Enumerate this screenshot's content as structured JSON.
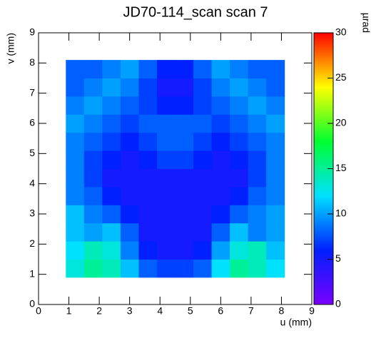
{
  "chart_data": {
    "type": "heatmap",
    "title": "JD70-114_scan scan 7",
    "x_label": "u (mm)",
    "y_label": "v (mm)",
    "z_label": "µrad",
    "xlim": [
      0,
      9
    ],
    "ylim": [
      0,
      9
    ],
    "xticks": [
      0,
      1,
      2,
      3,
      4,
      5,
      6,
      7,
      8,
      9
    ],
    "yticks": [
      0,
      1,
      2,
      3,
      4,
      5,
      6,
      7,
      8,
      9
    ],
    "zlim": [
      0,
      30
    ],
    "zticks": [
      0,
      5,
      10,
      15,
      20,
      25,
      30
    ],
    "colorscale": [
      "#7a00ff",
      "#0020ff",
      "#00e0ff",
      "#00ff30",
      "#ffff00",
      "#ff0000"
    ],
    "xbins": [
      0.9,
      1.5,
      2.1,
      2.7,
      3.3,
      3.9,
      4.5,
      5.1,
      5.7,
      6.3,
      6.9,
      7.5,
      8.1
    ],
    "ybins": [
      0.9,
      1.5,
      2.1,
      2.7,
      3.3,
      3.9,
      4.5,
      5.1,
      5.7,
      6.3,
      6.9,
      7.5,
      8.1
    ],
    "z": [
      [
        13,
        15,
        14,
        11,
        8,
        7,
        7,
        8,
        12,
        15,
        14,
        12
      ],
      [
        12,
        14,
        13,
        9,
        6,
        5,
        5,
        6,
        10,
        13,
        14,
        11
      ],
      [
        11,
        10,
        11,
        8,
        5,
        5,
        5,
        5,
        8,
        11,
        9,
        10
      ],
      [
        11,
        9,
        8,
        6,
        5,
        5,
        5,
        5,
        6,
        8,
        9,
        10
      ],
      [
        9,
        8,
        6,
        5,
        5,
        5,
        5,
        5,
        5,
        6,
        8,
        9
      ],
      [
        9,
        7,
        5,
        5,
        5,
        5,
        5,
        5,
        5,
        5,
        7,
        9
      ],
      [
        9,
        7,
        6,
        5,
        6,
        7,
        7,
        6,
        5,
        6,
        7,
        9
      ],
      [
        9,
        8,
        7,
        6,
        7,
        8,
        8,
        7,
        6,
        7,
        8,
        9
      ],
      [
        10,
        9,
        8,
        7,
        8,
        8,
        8,
        8,
        7,
        8,
        9,
        10
      ],
      [
        9,
        10,
        9,
        8,
        7,
        6,
        6,
        7,
        8,
        9,
        10,
        9
      ],
      [
        8,
        9,
        10,
        9,
        7,
        5,
        5,
        7,
        9,
        10,
        9,
        8
      ],
      [
        8,
        8,
        9,
        10,
        8,
        6,
        6,
        8,
        10,
        9,
        8,
        8
      ]
    ]
  }
}
